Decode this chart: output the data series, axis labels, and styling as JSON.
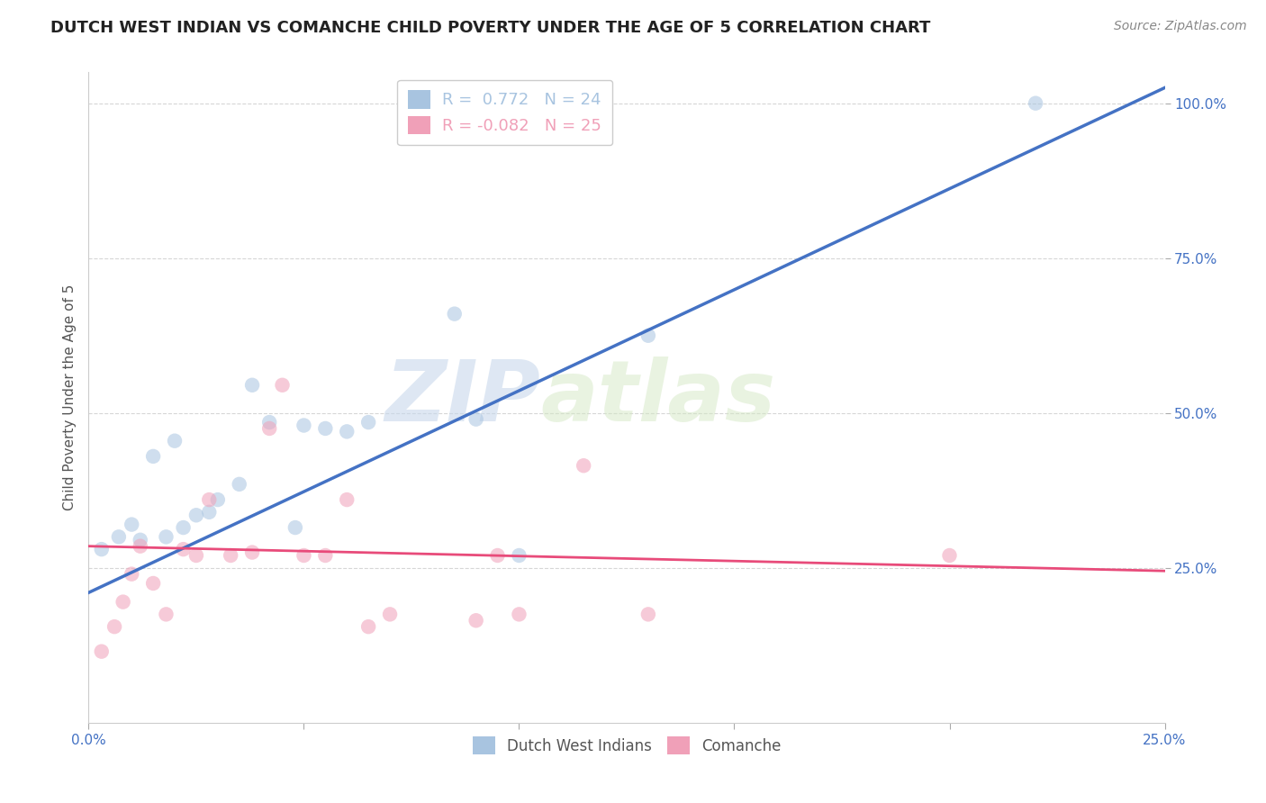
{
  "title": "DUTCH WEST INDIAN VS COMANCHE CHILD POVERTY UNDER THE AGE OF 5 CORRELATION CHART",
  "source": "Source: ZipAtlas.com",
  "ylabel_label": "Child Poverty Under the Age of 5",
  "x_min": 0.0,
  "x_max": 0.25,
  "y_min": 0.0,
  "y_max": 1.05,
  "x_ticks": [
    0.0,
    0.05,
    0.1,
    0.15,
    0.2,
    0.25
  ],
  "y_ticks": [
    0.25,
    0.5,
    0.75,
    1.0
  ],
  "y_tick_labels": [
    "25.0%",
    "50.0%",
    "75.0%",
    "100.0%"
  ],
  "legend_entries": [
    {
      "label": "Dutch West Indians",
      "color": "#a8c4e0",
      "R": "0.772",
      "N": "24"
    },
    {
      "label": "Comanche",
      "color": "#f0a0b8",
      "R": "-0.082",
      "N": "25"
    }
  ],
  "watermark_text": "ZIP",
  "watermark_text2": "atlas",
  "blue_scatter_x": [
    0.003,
    0.007,
    0.01,
    0.012,
    0.015,
    0.018,
    0.02,
    0.022,
    0.025,
    0.028,
    0.03,
    0.035,
    0.038,
    0.042,
    0.048,
    0.05,
    0.055,
    0.06,
    0.065,
    0.085,
    0.09,
    0.1,
    0.13,
    0.22
  ],
  "blue_scatter_y": [
    0.28,
    0.3,
    0.32,
    0.295,
    0.43,
    0.3,
    0.455,
    0.315,
    0.335,
    0.34,
    0.36,
    0.385,
    0.545,
    0.485,
    0.315,
    0.48,
    0.475,
    0.47,
    0.485,
    0.66,
    0.49,
    0.27,
    0.625,
    1.0
  ],
  "pink_scatter_x": [
    0.003,
    0.006,
    0.008,
    0.01,
    0.012,
    0.015,
    0.018,
    0.022,
    0.025,
    0.028,
    0.033,
    0.038,
    0.042,
    0.045,
    0.05,
    0.055,
    0.06,
    0.065,
    0.07,
    0.09,
    0.095,
    0.1,
    0.115,
    0.13,
    0.2
  ],
  "pink_scatter_y": [
    0.115,
    0.155,
    0.195,
    0.24,
    0.285,
    0.225,
    0.175,
    0.28,
    0.27,
    0.36,
    0.27,
    0.275,
    0.475,
    0.545,
    0.27,
    0.27,
    0.36,
    0.155,
    0.175,
    0.165,
    0.27,
    0.175,
    0.415,
    0.175,
    0.27
  ],
  "blue_line_color": "#4472c4",
  "pink_line_color": "#e84b7a",
  "blue_line_x0": 0.0,
  "blue_line_y0": 0.21,
  "blue_line_x1": 0.25,
  "blue_line_y1": 1.025,
  "pink_line_x0": 0.0,
  "pink_line_y0": 0.285,
  "pink_line_x1": 0.25,
  "pink_line_y1": 0.245,
  "scatter_alpha": 0.55,
  "scatter_size": 140,
  "grid_color": "#cccccc",
  "background_color": "#ffffff",
  "title_fontsize": 13,
  "axis_label_fontsize": 11,
  "tick_fontsize": 11,
  "source_fontsize": 10
}
